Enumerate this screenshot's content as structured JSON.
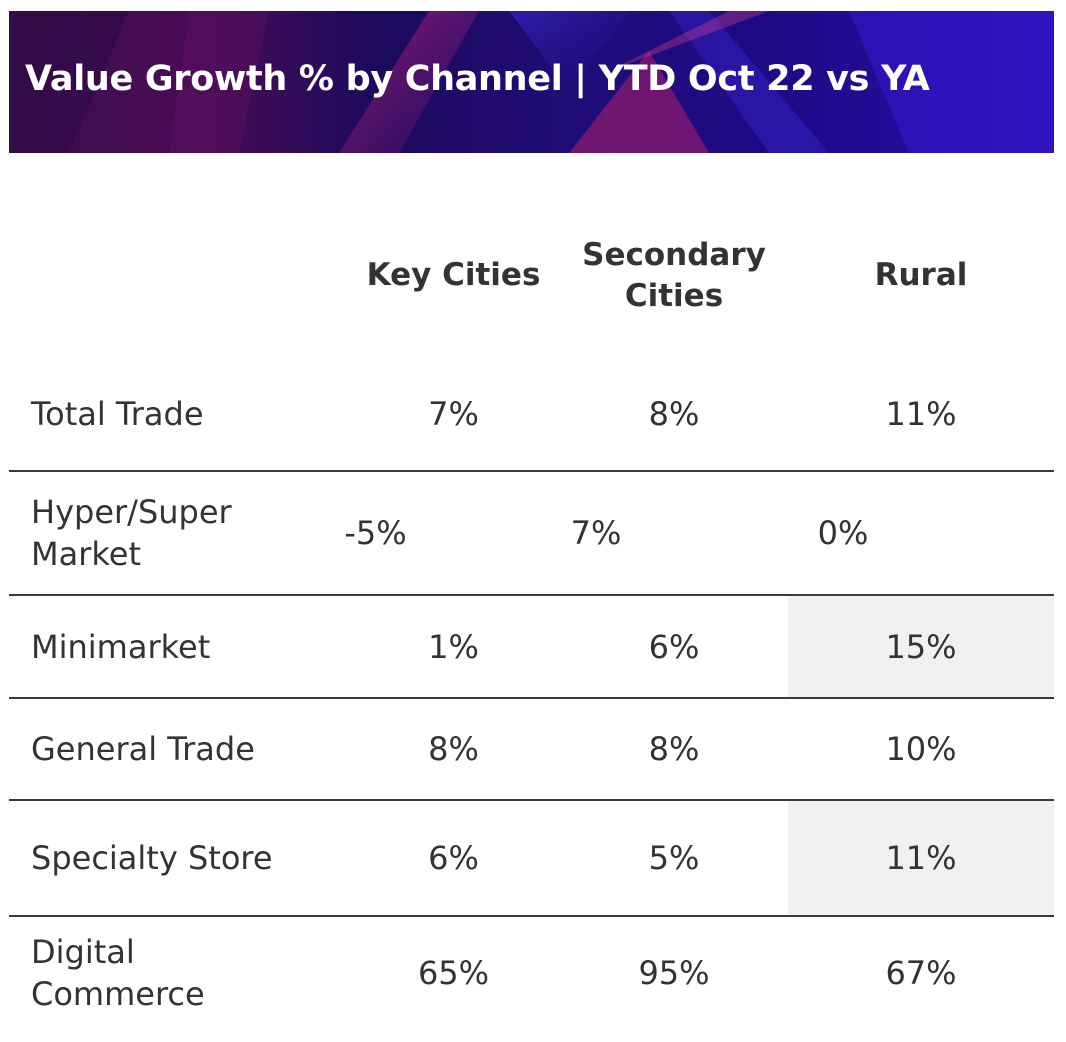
{
  "chart_data": {
    "type": "table",
    "title": "Value Growth % by Channel | YTD Oct 22 vs YA",
    "columns": [
      "",
      "Key Cities",
      "Secondary Cities",
      "Rural"
    ],
    "rows": [
      {
        "label": "Total Trade",
        "values": [
          "7%",
          "8%",
          "11%"
        ],
        "highlight": [
          false,
          false,
          false
        ]
      },
      {
        "label": "Hyper/Super Market",
        "values": [
          "-5%",
          "7%",
          "0%"
        ],
        "highlight": [
          false,
          false,
          false
        ]
      },
      {
        "label": "Minimarket",
        "values": [
          "1%",
          "6%",
          "15%"
        ],
        "highlight": [
          false,
          false,
          true
        ]
      },
      {
        "label": "General Trade",
        "values": [
          "8%",
          "8%",
          "10%"
        ],
        "highlight": [
          false,
          false,
          false
        ]
      },
      {
        "label": "Specialty Store",
        "values": [
          "6%",
          "5%",
          "11%"
        ],
        "highlight": [
          false,
          false,
          true
        ]
      },
      {
        "label": "Digital Commerce",
        "values": [
          "65%",
          "95%",
          "67%"
        ],
        "highlight": [
          false,
          false,
          false
        ]
      }
    ],
    "colors": {
      "text": "#333333",
      "divider": "#3a3a3a",
      "highlight": "#f1f1f1",
      "banner_primary": "#1a0c6a",
      "banner_accent": "#c2185b"
    }
  }
}
